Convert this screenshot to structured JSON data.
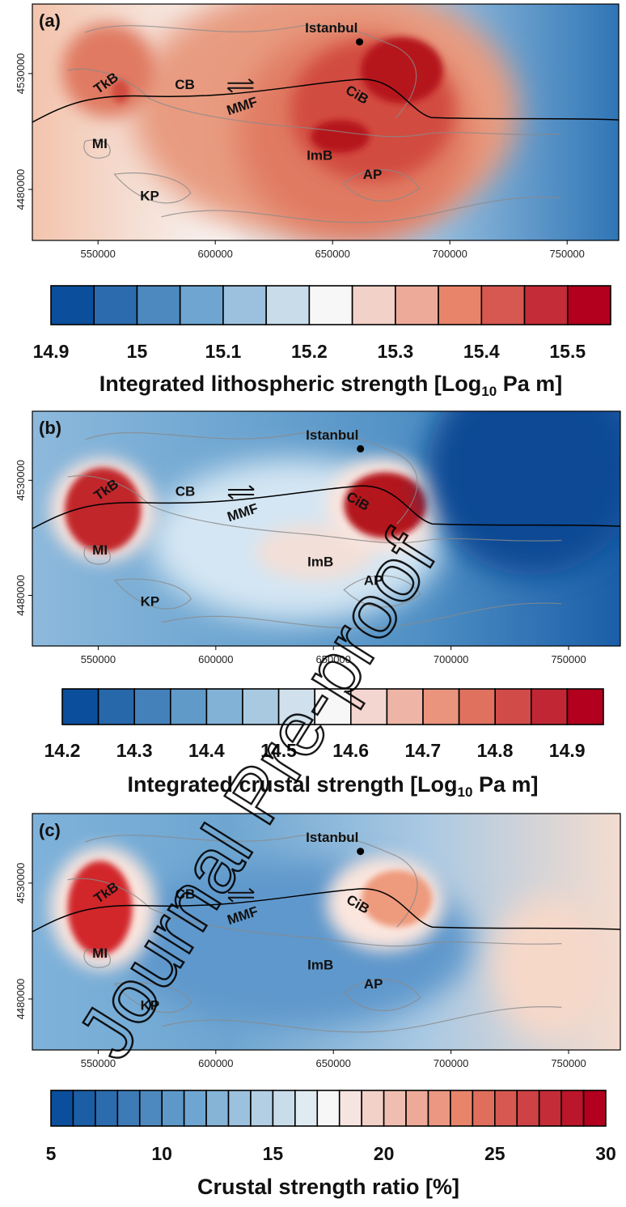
{
  "panels": [
    {
      "letter": "(a)",
      "map": {
        "x": 40,
        "y": 5,
        "w": 725,
        "h": 292
      },
      "xticks": [
        550000,
        600000,
        650000,
        700000,
        750000
      ],
      "yticks": [
        4530000,
        4480000
      ],
      "labels": [
        "Istanbul",
        "TkB",
        "CB",
        "MMF",
        "CiB",
        "MI",
        "ImB",
        "AP",
        "KP"
      ],
      "colorbar": {
        "ticks": [
          "14.9",
          "15",
          "15.1",
          "15.2",
          "15.3",
          "15.4",
          "15.5"
        ],
        "title_main": "Integrated lithospheric strength [Log",
        "title_sub": "10",
        "title_end": " Pa m]",
        "n_bins": 13
      }
    },
    {
      "letter": "(b)",
      "map": {
        "x": 40,
        "y": 508,
        "w": 727,
        "h": 290
      },
      "xticks": [
        550000,
        600000,
        650000,
        700000,
        750000
      ],
      "yticks": [
        4530000,
        4480000
      ],
      "labels": [
        "Istanbul",
        "TkB",
        "CB",
        "MMF",
        "CiB",
        "MI",
        "ImB",
        "AP",
        "KP"
      ],
      "colorbar": {
        "ticks": [
          "14.2",
          "14.3",
          "14.4",
          "14.5",
          "14.6",
          "14.7",
          "14.8",
          "14.9"
        ],
        "title_main": "Integrated crustal strength [Log",
        "title_sub": "10",
        "title_end": " Pa m]",
        "n_bins": 15
      }
    },
    {
      "letter": "(c)",
      "map": {
        "x": 40,
        "y": 1005,
        "w": 727,
        "h": 292
      },
      "xticks": [
        550000,
        600000,
        650000,
        700000,
        750000
      ],
      "yticks": [
        4530000,
        4480000
      ],
      "labels": [
        "Istanbul",
        "TkB",
        "CB",
        "MMF",
        "CiB",
        "MI",
        "ImB",
        "AP",
        "KP"
      ],
      "colorbar": {
        "ticks": [
          "5",
          "10",
          "15",
          "20",
          "25",
          "30"
        ],
        "title_main": "Crustal strength ratio [%]",
        "title_sub": "",
        "title_end": "",
        "n_bins": 25
      }
    }
  ],
  "colors": {
    "blue_dark": "#0b4f9c",
    "blue_mid": "#6ea6d1",
    "white": "#f7f7f7",
    "red_mid": "#e8846a",
    "red_dark": "#b2001e"
  },
  "watermark": "Journal Pre-proof",
  "chart_data": [
    {
      "type": "heatmap",
      "title": "(a)",
      "colorbar_label": "Integrated lithospheric strength [Log10 Pa m]",
      "colorbar_range": [
        14.9,
        15.55
      ],
      "x_ticks": [
        550000,
        600000,
        650000,
        700000,
        750000
      ],
      "y_ticks": [
        4530000,
        4480000
      ],
      "grid": false
    },
    {
      "type": "heatmap",
      "title": "(b)",
      "colorbar_label": "Integrated crustal strength [Log10 Pa m]",
      "colorbar_range": [
        14.2,
        14.95
      ],
      "x_ticks": [
        550000,
        600000,
        650000,
        700000,
        750000
      ],
      "y_ticks": [
        4530000,
        4480000
      ],
      "grid": false
    },
    {
      "type": "heatmap",
      "title": "(c)",
      "colorbar_label": "Crustal strength ratio [%]",
      "colorbar_range": [
        5,
        30
      ],
      "x_ticks": [
        550000,
        600000,
        650000,
        700000,
        750000
      ],
      "y_ticks": [
        4530000,
        4480000
      ],
      "grid": false
    }
  ]
}
